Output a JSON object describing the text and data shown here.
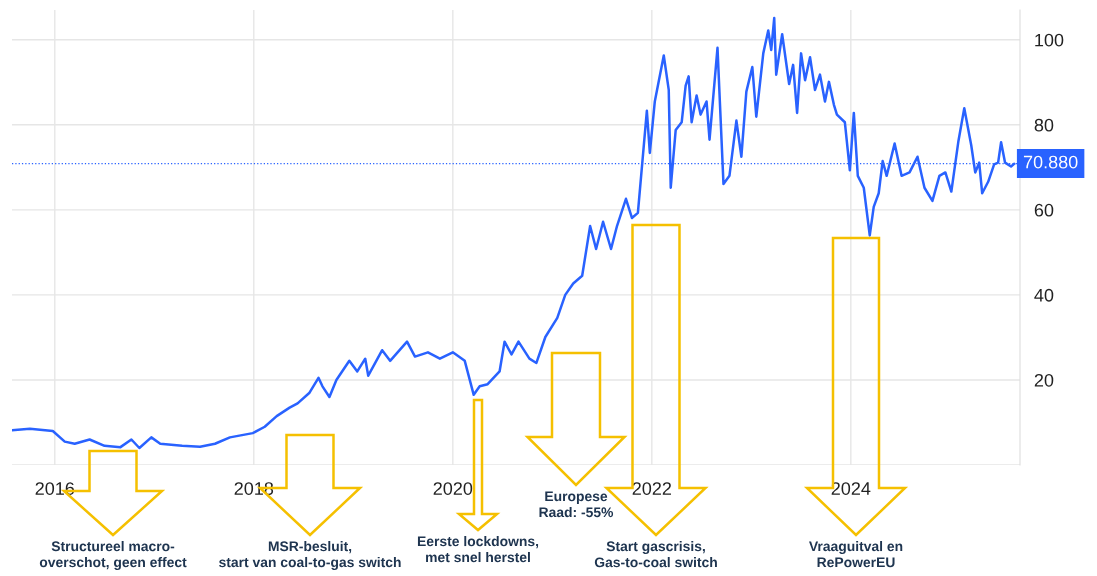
{
  "chart_data": {
    "type": "line",
    "xlim": [
      2015.57,
      2025.7
    ],
    "ylim": [
      0,
      107
    ],
    "xticks": [
      2016,
      2018,
      2020,
      2022,
      2024
    ],
    "yticks": [
      {
        "value": 0,
        "label": null
      },
      20,
      40,
      60,
      80,
      100
    ],
    "grid": true,
    "marker": "none",
    "line_style": "solid",
    "series": [
      {
        "color": "#2962ff",
        "x": [
          2015.57,
          2015.75,
          2015.98,
          2016.1,
          2016.2,
          2016.35,
          2016.5,
          2016.66,
          2016.77,
          2016.85,
          2016.97,
          2017.06,
          2017.28,
          2017.46,
          2017.61,
          2017.76,
          2017.99,
          2018.11,
          2018.23,
          2018.36,
          2018.44,
          2018.56,
          2018.65,
          2018.69,
          2018.76,
          2018.83,
          2018.96,
          2019.04,
          2019.12,
          2019.15,
          2019.29,
          2019.37,
          2019.54,
          2019.62,
          2019.75,
          2019.87,
          2020.0,
          2020.12,
          2020.21,
          2020.27,
          2020.35,
          2020.47,
          2020.52,
          2020.59,
          2020.66,
          2020.77,
          2020.84,
          2020.93,
          2021.05,
          2021.13,
          2021.21,
          2021.3,
          2021.38,
          2021.44,
          2021.51,
          2021.59,
          2021.65,
          2021.74,
          2021.8,
          2021.86,
          2021.95,
          2021.98,
          2022.03,
          2022.12,
          2022.17,
          2022.19,
          2022.24,
          2022.3,
          2022.34,
          2022.37,
          2022.4,
          2022.45,
          2022.49,
          2022.55,
          2022.58,
          2022.66,
          2022.72,
          2022.78,
          2022.85,
          2022.9,
          2022.95,
          2023.01,
          2023.05,
          2023.12,
          2023.17,
          2023.2,
          2023.23,
          2023.25,
          2023.31,
          2023.38,
          2023.42,
          2023.46,
          2023.5,
          2023.54,
          2023.59,
          2023.64,
          2023.69,
          2023.74,
          2023.78,
          2023.83,
          2023.86,
          2023.94,
          2023.99,
          2024.03,
          2024.07,
          2024.13,
          2024.19,
          2024.23,
          2024.28,
          2024.32,
          2024.36,
          2024.44,
          2024.51,
          2024.59,
          2024.67,
          2024.74,
          2024.82,
          2024.89,
          2024.95,
          2025.01,
          2025.08,
          2025.14,
          2025.21,
          2025.25,
          2025.29,
          2025.32,
          2025.38,
          2025.44,
          2025.48,
          2025.51,
          2025.55,
          2025.61,
          2025.64
        ],
        "values": [
          8.2,
          8.5,
          8.0,
          5.5,
          5.0,
          6.0,
          4.5,
          4.2,
          6.0,
          4.0,
          6.5,
          5.0,
          4.5,
          4.3,
          5.0,
          6.5,
          7.5,
          9.0,
          11.5,
          13.5,
          14.5,
          17.0,
          20.5,
          18.5,
          16.0,
          20.0,
          24.5,
          22.0,
          25.0,
          21.0,
          27.0,
          24.5,
          29.0,
          25.5,
          26.5,
          25.0,
          26.5,
          24.5,
          16.5,
          18.5,
          19.0,
          22.0,
          29.0,
          26.0,
          29.0,
          25.0,
          24.0,
          30.1,
          34.6,
          40.0,
          42.7,
          44.5,
          56.2,
          50.8,
          57.2,
          50.8,
          56.2,
          62.6,
          58.1,
          59.3,
          83.3,
          73.4,
          85.5,
          96.3,
          88.2,
          65.2,
          78.8,
          80.6,
          89.2,
          91.4,
          80.6,
          86.9,
          82.4,
          85.5,
          76.5,
          98.1,
          66.1,
          68.0,
          81.0,
          72.5,
          87.8,
          93.6,
          81.9,
          96.8,
          102.2,
          97.6,
          105.1,
          91.8,
          101.3,
          89.6,
          94.1,
          82.8,
          96.8,
          90.5,
          95.9,
          88.2,
          91.8,
          85.5,
          90.1,
          84.7,
          82.4,
          80.6,
          69.3,
          82.8,
          68.0,
          65.2,
          54.0,
          60.7,
          63.9,
          71.5,
          68.0,
          75.6,
          68.0,
          68.8,
          72.5,
          65.2,
          62.1,
          68.0,
          68.8,
          64.3,
          76.0,
          83.9,
          75.2,
          68.8,
          71.1,
          63.9,
          66.6,
          70.7,
          71.1,
          75.9,
          71.1,
          70.2,
          70.8
        ]
      }
    ],
    "ref_lines": [
      {
        "axis": "y",
        "value": 70.88,
        "label": "70.880",
        "color": "#2962ff",
        "line_style": "dotted"
      }
    ],
    "annotations": [
      "Structureel macro-\noverschot, geen effect",
      "MSR-besluit,\nstart van coal-to-gas switch",
      "Eerste lockdowns,\nmet snel herstel",
      "Europese\nRaad: -55%",
      "Start gascrisis,\nGas-to-coal switch",
      "Vraaguitval en\nRePowerEU"
    ]
  }
}
